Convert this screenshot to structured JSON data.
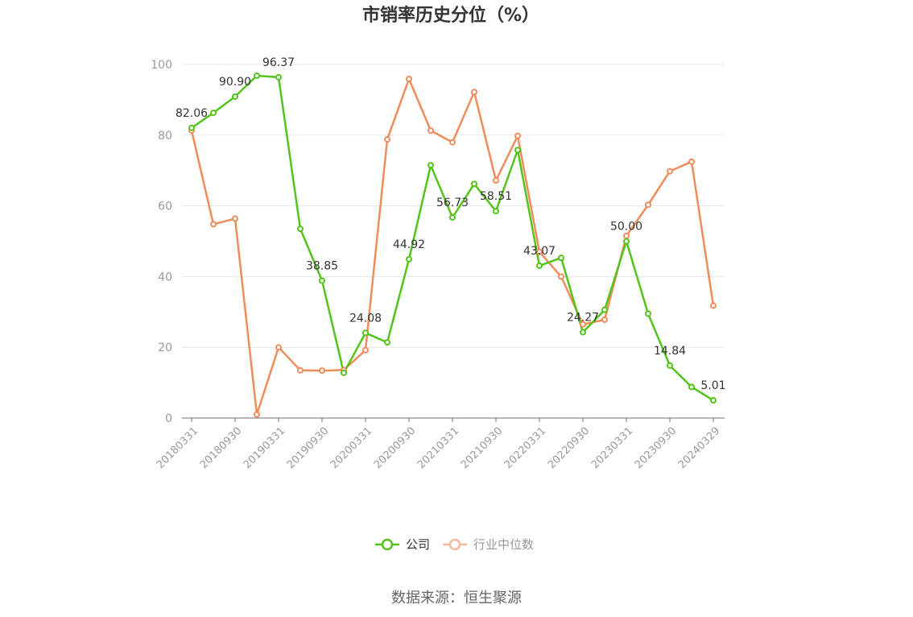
{
  "chart_data": {
    "type": "line",
    "title": "市销率历史分位（%）",
    "source": "数据来源：恒生聚源",
    "ylim": [
      0,
      100
    ],
    "yticks": [
      0,
      20,
      40,
      60,
      80,
      100
    ],
    "x": [
      "20180331",
      "20180630",
      "20180930",
      "20181231",
      "20190331",
      "20190630",
      "20190930",
      "20191231",
      "20200331",
      "20200630",
      "20200930",
      "20201231",
      "20210331",
      "20210630",
      "20210930",
      "20211231",
      "20220331",
      "20220630",
      "20220930",
      "20221231",
      "20230331",
      "20230630",
      "20230930",
      "20231231",
      "20240329"
    ],
    "xtick_labels": [
      "20180331",
      "20180930",
      "20190331",
      "20190930",
      "20200331",
      "20200930",
      "20210331",
      "20210930",
      "20220331",
      "20220930",
      "20230331",
      "20230930",
      "20240329"
    ],
    "grid": true,
    "legend_position": "bottom",
    "series": [
      {
        "name": "公司",
        "color": "#52c41a",
        "values": [
          82.06,
          86.3,
          90.9,
          96.8,
          96.37,
          53.5,
          38.85,
          12.8,
          24.08,
          21.4,
          44.92,
          71.5,
          56.73,
          66.2,
          58.51,
          75.8,
          43.07,
          45.3,
          24.27,
          30.6,
          50.0,
          29.5,
          14.84,
          8.8,
          5.01
        ],
        "labels": {
          "0": "82.06",
          "2": "90.90",
          "4": "96.37",
          "6": "38.85",
          "8": "24.08",
          "10": "44.92",
          "12": "56.73",
          "14": "58.51",
          "16": "43.07",
          "18": "24.27",
          "20": "50.00",
          "22": "14.84",
          "24": "5.01"
        }
      },
      {
        "name": "行业中位数",
        "color": "#f08c5a",
        "values": [
          81.3,
          54.8,
          56.4,
          1.0,
          20.0,
          13.5,
          13.4,
          13.6,
          19.2,
          78.8,
          95.9,
          81.3,
          78.0,
          92.2,
          67.2,
          79.8,
          47.0,
          40.0,
          26.5,
          27.8,
          51.5,
          60.3,
          69.8,
          72.5,
          31.8
        ]
      }
    ]
  }
}
